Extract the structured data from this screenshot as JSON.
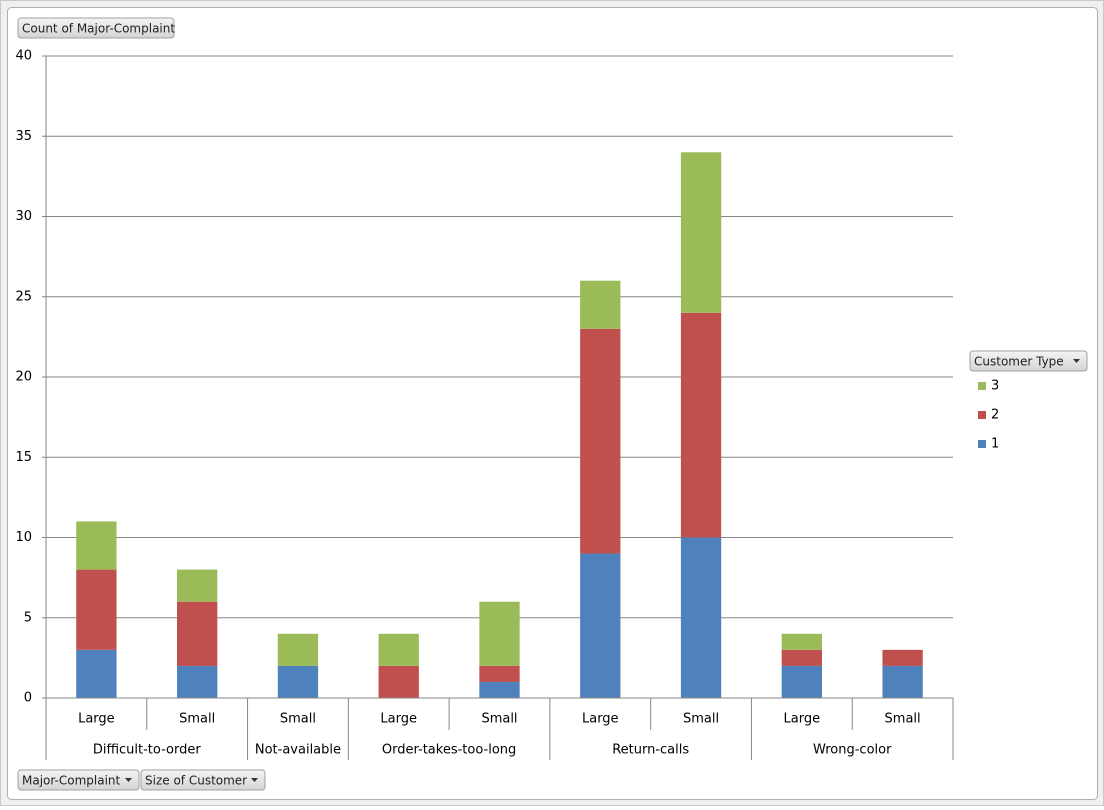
{
  "chart_data": {
    "type": "bar",
    "stacked": true,
    "value_field": "Count of Major-Complaint",
    "axis_fields": [
      "Major-Complaint",
      "Size of Customer"
    ],
    "legend_title": "Customer Type",
    "legend_position": "right",
    "grid": true,
    "groups": [
      {
        "name": "Difficult-to-order",
        "categories": [
          "Large",
          "Small"
        ]
      },
      {
        "name": "Not-available",
        "categories": [
          "Small"
        ]
      },
      {
        "name": "Order-takes-too-long",
        "categories": [
          "Large",
          "Small"
        ]
      },
      {
        "name": "Return-calls",
        "categories": [
          "Large",
          "Small"
        ]
      },
      {
        "name": "Wrong-color",
        "categories": [
          "Large",
          "Small"
        ]
      }
    ],
    "series": [
      {
        "name": "1",
        "color": "#4f81bd",
        "values": [
          3,
          2,
          2,
          null,
          1,
          9,
          10,
          2,
          2
        ]
      },
      {
        "name": "2",
        "color": "#c0504d",
        "values": [
          5,
          4,
          null,
          2,
          1,
          14,
          14,
          1,
          1
        ]
      },
      {
        "name": "3",
        "color": "#9bbb59",
        "values": [
          3,
          2,
          2,
          2,
          4,
          3,
          10,
          1,
          null
        ]
      }
    ],
    "ylim": [
      0,
      40
    ],
    "yticks": [
      0,
      5,
      10,
      15,
      20,
      25,
      30,
      35,
      40
    ]
  }
}
